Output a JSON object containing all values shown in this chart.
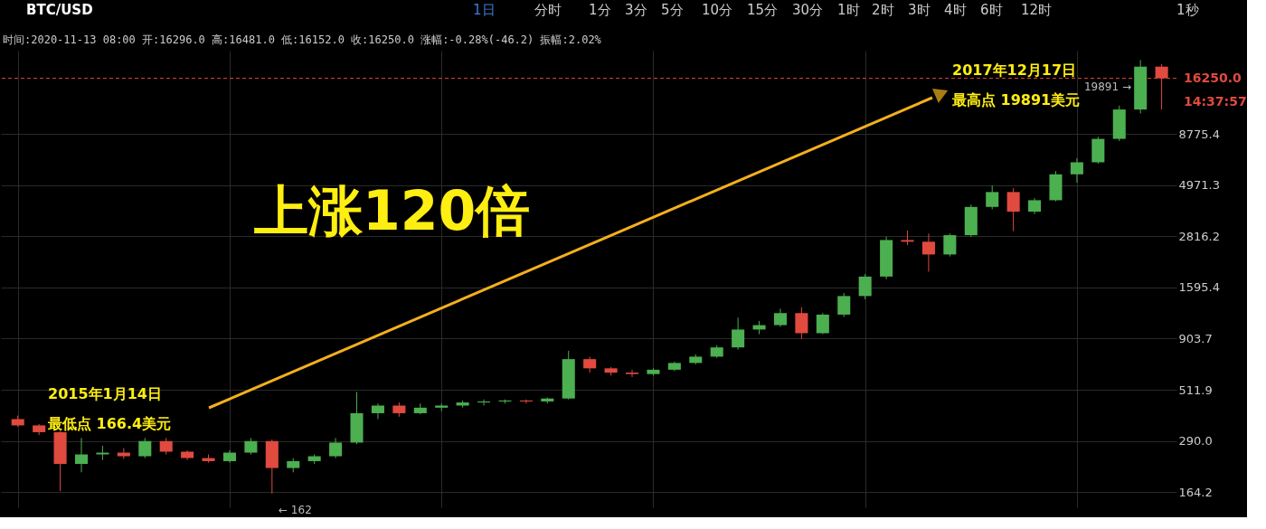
{
  "chart_data": {
    "type": "candlestick",
    "title": "BTC/USD",
    "subtitle": "时间:2020-11-13 08:00 开:16296.0 高:16481.0 低:16152.0 收:16250.0 涨幅:-0.28%(-46.2) 振幅:2.02%",
    "categories": [
      null,
      null,
      null,
      null,
      null,
      null,
      null,
      null,
      null,
      null,
      null,
      null,
      null,
      null,
      null,
      null,
      null,
      null,
      null,
      null,
      null,
      null,
      null,
      null,
      null,
      null,
      null,
      null,
      null,
      null,
      null,
      null,
      null,
      null,
      null,
      null,
      null,
      null,
      null,
      null,
      null,
      null,
      null,
      null,
      null,
      null,
      null,
      null,
      null,
      null,
      null,
      null,
      null,
      null,
      null
    ],
    "ohlc": [
      [
        370,
        385,
        340,
        345
      ],
      [
        345,
        350,
        310,
        320
      ],
      [
        320,
        325,
        166.4,
        225
      ],
      [
        225,
        300,
        205,
        250
      ],
      [
        250,
        275,
        235,
        255
      ],
      [
        255,
        268,
        238,
        245
      ],
      [
        245,
        300,
        240,
        290
      ],
      [
        290,
        300,
        250,
        258
      ],
      [
        258,
        262,
        235,
        240
      ],
      [
        240,
        250,
        228,
        232
      ],
      [
        232,
        262,
        228,
        255
      ],
      [
        255,
        300,
        250,
        290
      ],
      [
        290,
        295,
        162,
        215
      ],
      [
        215,
        240,
        205,
        232
      ],
      [
        232,
        250,
        225,
        245
      ],
      [
        245,
        300,
        240,
        285
      ],
      [
        285,
        500,
        280,
        395
      ],
      [
        395,
        440,
        370,
        430
      ],
      [
        430,
        445,
        380,
        395
      ],
      [
        395,
        440,
        390,
        420
      ],
      [
        420,
        440,
        405,
        430
      ],
      [
        430,
        455,
        420,
        445
      ],
      [
        445,
        460,
        430,
        450
      ],
      [
        450,
        460,
        440,
        455
      ],
      [
        455,
        460,
        440,
        450
      ],
      [
        450,
        470,
        440,
        465
      ],
      [
        465,
        790,
        460,
        720
      ],
      [
        720,
        740,
        620,
        650
      ],
      [
        650,
        660,
        600,
        620
      ],
      [
        620,
        640,
        590,
        610
      ],
      [
        610,
        650,
        600,
        640
      ],
      [
        640,
        700,
        630,
        690
      ],
      [
        690,
        760,
        680,
        740
      ],
      [
        740,
        840,
        730,
        820
      ],
      [
        820,
        1140,
        800,
        1000
      ],
      [
        1000,
        1100,
        950,
        1050
      ],
      [
        1050,
        1260,
        1030,
        1200
      ],
      [
        1200,
        1280,
        900,
        960
      ],
      [
        960,
        1200,
        950,
        1180
      ],
      [
        1180,
        1500,
        1150,
        1450
      ],
      [
        1450,
        1850,
        1400,
        1800
      ],
      [
        1800,
        2800,
        1750,
        2700
      ],
      [
        2700,
        3000,
        2550,
        2650
      ],
      [
        2650,
        2900,
        1900,
        2300
      ],
      [
        2300,
        2900,
        2250,
        2850
      ],
      [
        2850,
        4000,
        2800,
        3900
      ],
      [
        3900,
        4950,
        3800,
        4600
      ],
      [
        4600,
        4800,
        2980,
        3700
      ],
      [
        3700,
        4300,
        3600,
        4200
      ],
      [
        4200,
        5800,
        4150,
        5600
      ],
      [
        5600,
        6700,
        5100,
        6400
      ],
      [
        6400,
        8500,
        6300,
        8300
      ],
      [
        8300,
        12000,
        8100,
        11500
      ],
      [
        11500,
        19891,
        11000,
        18500
      ],
      [
        18500,
        19000,
        11500,
        16250
      ]
    ],
    "colors": [
      "#e04a3f",
      "#e04a3f",
      "#e04a3f",
      "#4caf50",
      "#4caf50",
      "#e04a3f",
      "#4caf50",
      "#e04a3f",
      "#e04a3f",
      "#e04a3f",
      "#4caf50",
      "#4caf50",
      "#e04a3f",
      "#4caf50",
      "#4caf50",
      "#4caf50",
      "#4caf50",
      "#4caf50",
      "#e04a3f",
      "#4caf50",
      "#4caf50",
      "#4caf50",
      "#4caf50",
      "#4caf50",
      "#e04a3f",
      "#4caf50",
      "#4caf50",
      "#e04a3f",
      "#e04a3f",
      "#e04a3f",
      "#4caf50",
      "#4caf50",
      "#4caf50",
      "#4caf50",
      "#4caf50",
      "#4caf50",
      "#4caf50",
      "#e04a3f",
      "#4caf50",
      "#4caf50",
      "#4caf50",
      "#4caf50",
      "#e04a3f",
      "#e04a3f",
      "#4caf50",
      "#4caf50",
      "#4caf50",
      "#e04a3f",
      "#4caf50",
      "#4caf50",
      "#4caf50",
      "#4caf50",
      "#4caf50",
      "#4caf50",
      "#e04a3f"
    ],
    "log": "y",
    "ylim": [
      139,
      22100
    ],
    "yticks": [
      164.2,
      {
        "value": 290,
        "label": "290.0"
      },
      511.9,
      903.7,
      1595.4,
      2816.2,
      4971.3,
      8775.4
    ],
    "grid": true,
    "tick_labels": "y",
    "ref_lines": [
      {
        "axis": "y",
        "value": 16250.0,
        "label": "16250.0",
        "color": "#e04a3f",
        "line_style": "dashed"
      }
    ],
    "annotations": [
      "1日",
      "分时",
      "1分",
      "3分",
      "5分",
      "10分",
      "15分",
      "30分",
      "1时",
      "2时",
      "3时",
      "4时",
      "6时",
      "12时",
      "1秒",
      "上涨120倍",
      "2015年1月14日",
      "最低点 166.4美元",
      "2017年12月17日",
      "最高点 19891美元",
      "14:37:57",
      "19891 →",
      "← 162"
    ]
  }
}
